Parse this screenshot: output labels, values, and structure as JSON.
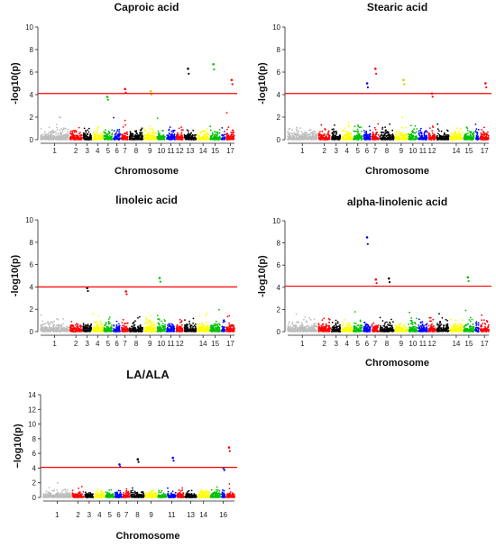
{
  "colors": {
    "palette": [
      "#bdbdbd",
      "#ff0000",
      "#000000",
      "#ffff00",
      "#00c000",
      "#0000ff"
    ],
    "threshold": "#ff0000"
  },
  "chart_data": [
    {
      "type": "scatter",
      "title": "Caproic acid",
      "xlabel": "Chromosome",
      "ylabel": "-log10(p)",
      "ylim": [
        0,
        10
      ],
      "yticks": [
        0,
        2,
        4,
        6,
        8,
        10
      ],
      "threshold": 4.1,
      "chromosomes": [
        "1",
        "2",
        "3",
        "4",
        "5",
        "6",
        "7",
        "8",
        "9",
        "10",
        "11",
        "12",
        "13",
        "14",
        "15",
        "16",
        "17"
      ],
      "xtick_labels": [
        "1",
        "2",
        "3",
        "4",
        "5",
        "6",
        "7",
        "8",
        "9",
        "10",
        "11",
        "12",
        "13",
        "14",
        "15",
        "17"
      ],
      "top_peaks": [
        {
          "chromosome": "5",
          "value": 3.8
        },
        {
          "chromosome": "7",
          "value": 4.5
        },
        {
          "chromosome": "9",
          "value": 4.3
        },
        {
          "chromosome": "13",
          "value": 6.3
        },
        {
          "chromosome": "15",
          "value": 6.7
        },
        {
          "chromosome": "17",
          "value": 5.3
        }
      ]
    },
    {
      "type": "scatter",
      "title": "Stearic acid",
      "xlabel": "Chromosome",
      "ylabel": "-log10(p)",
      "ylim": [
        0,
        10
      ],
      "yticks": [
        0,
        2,
        4,
        6,
        8,
        10
      ],
      "threshold": 4.1,
      "chromosomes": [
        "1",
        "2",
        "3",
        "4",
        "5",
        "6",
        "7",
        "8",
        "9",
        "10",
        "11",
        "12",
        "13",
        "14",
        "15",
        "16",
        "17"
      ],
      "xtick_labels": [
        "1",
        "2",
        "3",
        "4",
        "5",
        "6",
        "7",
        "8",
        "9",
        "10",
        "11",
        "12",
        "14",
        "15",
        "17"
      ],
      "top_peaks": [
        {
          "chromosome": "6",
          "value": 5.0
        },
        {
          "chromosome": "7",
          "value": 6.3
        },
        {
          "chromosome": "9",
          "value": 5.3
        },
        {
          "chromosome": "12",
          "value": 4.1
        },
        {
          "chromosome": "17",
          "value": 5.0
        }
      ]
    },
    {
      "type": "scatter",
      "title": "linoleic acid",
      "xlabel": "",
      "ylabel": "-log10(p)",
      "ylim": [
        0,
        10
      ],
      "yticks": [
        0,
        2,
        4,
        6,
        8,
        10
      ],
      "threshold": 4.0,
      "chromosomes": [
        "1",
        "2",
        "3",
        "4",
        "5",
        "6",
        "7",
        "8",
        "9",
        "10",
        "11",
        "12",
        "13",
        "14",
        "15",
        "16",
        "17"
      ],
      "xtick_labels": [
        "1",
        "2",
        "3",
        "4",
        "5",
        "6",
        "7",
        "8",
        "9",
        "10",
        "11",
        "12",
        "14",
        "15",
        "17"
      ],
      "top_peaks": [
        {
          "chromosome": "3",
          "value": 3.9
        },
        {
          "chromosome": "10",
          "value": 4.8
        },
        {
          "chromosome": "7",
          "value": 3.6
        }
      ]
    },
    {
      "type": "scatter",
      "title": "alpha-linolenic acid",
      "xlabel": "Chromosome",
      "ylabel": "-log10(p)",
      "ylim": [
        0,
        10
      ],
      "yticks": [
        0,
        2,
        4,
        6,
        8,
        10
      ],
      "threshold": 4.1,
      "chromosomes": [
        "1",
        "2",
        "3",
        "4",
        "5",
        "6",
        "7",
        "8",
        "9",
        "10",
        "11",
        "12",
        "13",
        "14",
        "15",
        "16",
        "17"
      ],
      "xtick_labels": [
        "1",
        "2",
        "3",
        "4",
        "5",
        "6",
        "7",
        "8",
        "9",
        "10",
        "11",
        "12",
        "14",
        "15",
        "17"
      ],
      "top_peaks": [
        {
          "chromosome": "6",
          "value": 8.5
        },
        {
          "chromosome": "7",
          "value": 4.7
        },
        {
          "chromosome": "8",
          "value": 4.8
        },
        {
          "chromosome": "15",
          "value": 4.9
        }
      ]
    },
    {
      "type": "scatter",
      "title": "LA/ALA",
      "xlabel": "Chromosome",
      "ylabel": "−log10(p)",
      "ylim": [
        0,
        14
      ],
      "yticks": [
        0,
        2,
        4,
        6,
        8,
        10,
        12,
        14
      ],
      "threshold": 4.1,
      "chromosomes": [
        "1",
        "2",
        "3",
        "4",
        "5",
        "6",
        "7",
        "8",
        "9",
        "10",
        "11",
        "12",
        "13",
        "14",
        "15",
        "16",
        "17"
      ],
      "xtick_labels": [
        "1",
        "2",
        "3",
        "4",
        "5",
        "6",
        "7",
        "8",
        "9",
        "11",
        "13",
        "14",
        "16"
      ],
      "top_peaks": [
        {
          "chromosome": "6",
          "value": 4.5
        },
        {
          "chromosome": "8",
          "value": 5.2
        },
        {
          "chromosome": "11",
          "value": 5.4
        },
        {
          "chromosome": "16",
          "value": 4.0
        },
        {
          "chromosome": "17",
          "value": 6.8
        }
      ]
    }
  ]
}
